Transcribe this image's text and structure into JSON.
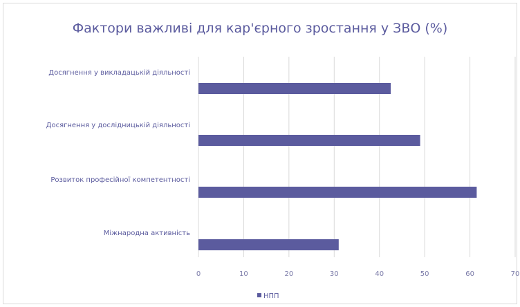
{
  "chart_data": {
    "type": "bar",
    "orientation": "horizontal",
    "title": "Фактори важливі для кар'єрного зростання у ЗВО (%)",
    "categories": [
      "Досягнення у викладацькій діяльності",
      "Досягнення у дослідницькій діяльності",
      "Розвиток професійної компетентності",
      "Міжнародна активність"
    ],
    "series": [
      {
        "name": "НПП",
        "values": [
          42.5,
          49,
          61.5,
          31
        ],
        "color": "#5b5b9e"
      }
    ],
    "xlim": [
      0,
      70
    ],
    "xticks": [
      0,
      10,
      20,
      30,
      40,
      50,
      60,
      70
    ],
    "grid": "vertical",
    "legend": "bottom"
  }
}
